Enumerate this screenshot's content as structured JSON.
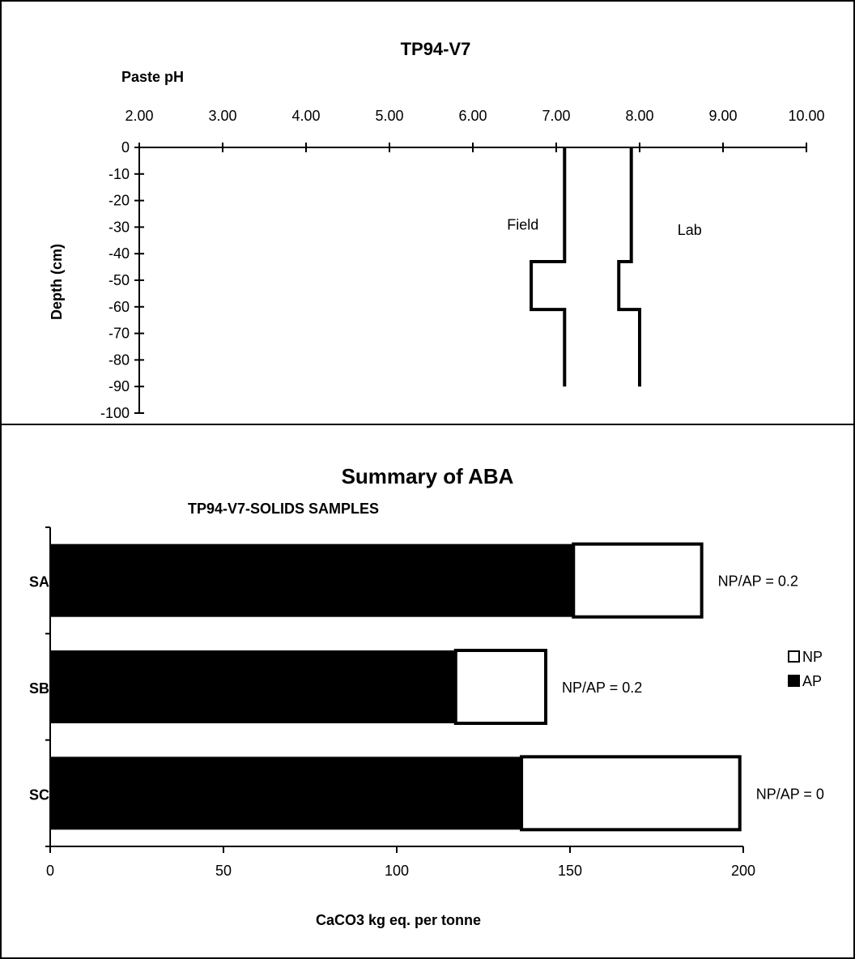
{
  "chart_data": [
    {
      "type": "line",
      "title": "TP94-V7",
      "xlabel": "Paste pH",
      "ylabel": "Depth (cm)",
      "xlim": [
        2.0,
        10.0
      ],
      "ylim": [
        -100,
        0
      ],
      "x_ticks": [
        "2.00",
        "3.00",
        "4.00",
        "5.00",
        "6.00",
        "7.00",
        "8.00",
        "9.00",
        "10.00"
      ],
      "y_ticks": [
        "0",
        "-10",
        "-20",
        "-30",
        "-40",
        "-50",
        "-60",
        "-70",
        "-80",
        "-90",
        "-100"
      ],
      "x_axis_position": "top",
      "grid": false,
      "series": [
        {
          "name": "Field",
          "points": [
            [
              7.1,
              0
            ],
            [
              7.1,
              -43
            ],
            [
              6.7,
              -43
            ],
            [
              6.7,
              -61
            ],
            [
              7.1,
              -61
            ],
            [
              7.1,
              -90
            ]
          ]
        },
        {
          "name": "Lab",
          "points": [
            [
              7.9,
              0
            ],
            [
              7.9,
              -43
            ],
            [
              7.75,
              -43
            ],
            [
              7.75,
              -61
            ],
            [
              8.0,
              -61
            ],
            [
              8.0,
              -90
            ]
          ]
        }
      ],
      "labels": [
        {
          "text": "Field",
          "x": 6.6,
          "y": -31
        },
        {
          "text": "Lab",
          "x": 8.6,
          "y": -33
        }
      ]
    },
    {
      "type": "bar",
      "orientation": "horizontal",
      "stacked": true,
      "title": "Summary of ABA",
      "subtitle": "TP94-V7-SOLIDS SAMPLES",
      "xlabel": "CaCO3 kg eq. per tonne",
      "xlim": [
        0,
        200
      ],
      "x_ticks": [
        "0",
        "50",
        "100",
        "150",
        "200"
      ],
      "categories": [
        "SA",
        "SB",
        "SC"
      ],
      "series": [
        {
          "name": "AP",
          "color": "#000000",
          "values": [
            151,
            117,
            136
          ]
        },
        {
          "name": "NP",
          "color": "#ffffff",
          "values": [
            37,
            26,
            63
          ]
        }
      ],
      "annotations": [
        "NP/AP = 0.2",
        "NP/AP = 0.2",
        "NP/AP = 0"
      ],
      "legend": {
        "position": "right",
        "entries": [
          "NP",
          "AP"
        ]
      }
    }
  ]
}
